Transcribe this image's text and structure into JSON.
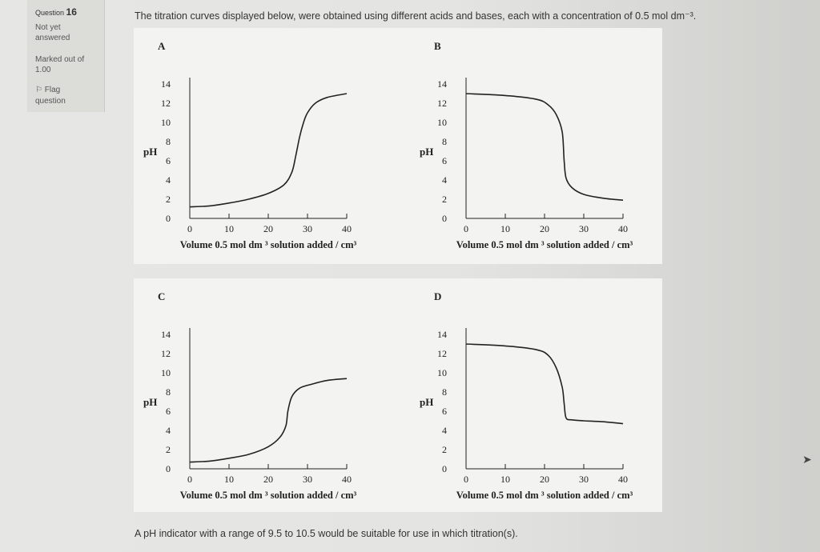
{
  "info": {
    "question_prefix": "Question",
    "question_number": "16",
    "status_line1": "Not yet",
    "status_line2": "answered",
    "marked_line1": "Marked out of",
    "marked_line2": "1.00",
    "flag_label": "Flag",
    "flag_label2": "question"
  },
  "question_text": "The titration curves displayed below, were obtained using different acids and bases, each with a concentration of 0.5 mol dm⁻³.",
  "footer_text": "A pH indicator with a range of 9.5 to 10.5 would be suitable for use in which titration(s).",
  "chart_data": [
    {
      "panel": "A",
      "type": "line",
      "ylabel": "pH",
      "xlabel": "Volume 0.5 mol dm ³ solution added / cm³",
      "x_ticks": [
        "0",
        "10",
        "20",
        "30",
        "40"
      ],
      "y_ticks": [
        "14",
        "12",
        "10",
        "8",
        "6",
        "4",
        "2",
        "0"
      ],
      "xlim": [
        0,
        40
      ],
      "ylim": [
        0,
        14
      ],
      "x": [
        0,
        5,
        10,
        15,
        20,
        24,
        26,
        27,
        28,
        29,
        30,
        32,
        35,
        40
      ],
      "y": [
        1.2,
        1.3,
        1.6,
        2.0,
        2.6,
        3.5,
        4.8,
        6.5,
        8.5,
        10,
        11,
        12,
        12.6,
        13
      ]
    },
    {
      "panel": "B",
      "type": "line",
      "ylabel": "pH",
      "xlabel": "Volume 0.5 mol dm ³ solution added / cm³",
      "x_ticks": [
        "0",
        "10",
        "20",
        "30",
        "40"
      ],
      "y_ticks": [
        "14",
        "12",
        "10",
        "8",
        "6",
        "4",
        "2",
        "0"
      ],
      "xlim": [
        0,
        40
      ],
      "ylim": [
        0,
        14
      ],
      "x": [
        0,
        10,
        18,
        21,
        23,
        24.5,
        25,
        25.5,
        27,
        30,
        35,
        40
      ],
      "y": [
        13,
        12.8,
        12.4,
        11.8,
        10.8,
        9,
        6,
        4.2,
        3.2,
        2.5,
        2.1,
        1.9
      ]
    },
    {
      "panel": "C",
      "type": "line",
      "ylabel": "pH",
      "xlabel": "Volume 0.5 mol dm ³ solution added / cm³",
      "x_ticks": [
        "0",
        "10",
        "20",
        "30",
        "40"
      ],
      "y_ticks": [
        "14",
        "12",
        "10",
        "8",
        "6",
        "4",
        "2",
        "0"
      ],
      "xlim": [
        0,
        40
      ],
      "ylim": [
        0,
        14
      ],
      "x": [
        0,
        5,
        10,
        15,
        20,
        23,
        24.5,
        25,
        26,
        28,
        31,
        35,
        40
      ],
      "y": [
        0.7,
        0.8,
        1.1,
        1.5,
        2.3,
        3.3,
        4.5,
        6.0,
        7.5,
        8.4,
        8.8,
        9.2,
        9.4
      ]
    },
    {
      "panel": "D",
      "type": "line",
      "ylabel": "pH",
      "xlabel": "Volume 0.5 mol dm ³ solution added / cm³",
      "x_ticks": [
        "0",
        "10",
        "20",
        "30",
        "40"
      ],
      "y_ticks": [
        "14",
        "12",
        "10",
        "8",
        "6",
        "4",
        "2",
        "0"
      ],
      "xlim": [
        0,
        40
      ],
      "ylim": [
        0,
        14
      ],
      "x": [
        0,
        10,
        18,
        21,
        23,
        24.5,
        25,
        25.5,
        27,
        30,
        35,
        40
      ],
      "y": [
        13,
        12.8,
        12.4,
        11.8,
        10.5,
        8.5,
        6.8,
        5.3,
        5.1,
        5.0,
        4.9,
        4.7
      ]
    }
  ]
}
